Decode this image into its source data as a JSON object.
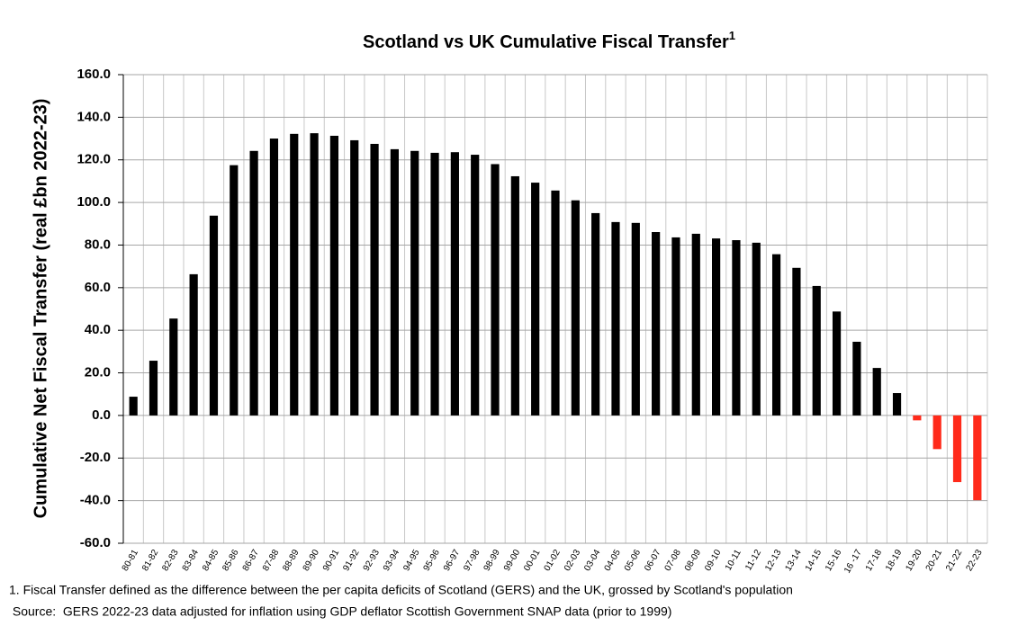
{
  "chart_data": {
    "type": "bar",
    "title": "Scotland vs UK Cumulative Fiscal Transfer",
    "title_superscript": "1",
    "y_label": "Cumulative Net Fiscal Transfer (real £bn 2022-23)",
    "categories": [
      "80-81",
      "81-82",
      "82-83",
      "83-84",
      "84-85",
      "85-86",
      "86-87",
      "87-88",
      "88-89",
      "89-90",
      "90-91",
      "91-92",
      "92-93",
      "93-94",
      "94-95",
      "95-96",
      "96-97",
      "97-98",
      "98-99",
      "99-00",
      "00-01",
      "01-02",
      "02-03",
      "03-04",
      "04-05",
      "05-06",
      "06-07",
      "07-08",
      "08-09",
      "09-10",
      "10-11",
      "11-12",
      "12-13",
      "13-14",
      "14-15",
      "15-16",
      "16 -17",
      "17-18",
      "18-19",
      "19-20",
      "20-21",
      "21-22",
      "22-23"
    ],
    "values": [
      8.8,
      25.7,
      45.5,
      66.3,
      93.8,
      117.5,
      124.2,
      130,
      132.2,
      132.5,
      131.3,
      129.2,
      127.5,
      125,
      124.2,
      123.3,
      123.6,
      122.4,
      118,
      112.3,
      109.3,
      105.6,
      101,
      95,
      90.8,
      90.4,
      86.1,
      83.6,
      85.3,
      83.1,
      82.3,
      81.1,
      75.7,
      69.3,
      60.8,
      48.8,
      34.6,
      22.3,
      10.5,
      -2.3,
      -15.8,
      -31.3,
      -39.8
    ],
    "colors": [
      "#000000",
      "#000000",
      "#000000",
      "#000000",
      "#000000",
      "#000000",
      "#000000",
      "#000000",
      "#000000",
      "#000000",
      "#000000",
      "#000000",
      "#000000",
      "#000000",
      "#000000",
      "#000000",
      "#000000",
      "#000000",
      "#000000",
      "#000000",
      "#000000",
      "#000000",
      "#000000",
      "#000000",
      "#000000",
      "#000000",
      "#000000",
      "#000000",
      "#000000",
      "#000000",
      "#000000",
      "#000000",
      "#000000",
      "#000000",
      "#000000",
      "#000000",
      "#000000",
      "#000000",
      "#000000",
      "#ff2a1a",
      "#ff2a1a",
      "#ff2a1a",
      "#ff2a1a"
    ],
    "ylim": [
      -60,
      160
    ],
    "yticks": [
      {
        "value": -60,
        "label": "-60.0"
      },
      {
        "value": -40,
        "label": "-40.0"
      },
      {
        "value": -20,
        "label": "-20.0"
      },
      {
        "value": 0,
        "label": "0.0"
      },
      {
        "value": 20,
        "label": "20.0"
      },
      {
        "value": 40,
        "label": "40.0"
      },
      {
        "value": 60,
        "label": "60.0"
      },
      {
        "value": 80,
        "label": "80.0"
      },
      {
        "value": 100,
        "label": "100.0"
      },
      {
        "value": 120,
        "label": "120.0"
      },
      {
        "value": 140,
        "label": "140.0"
      },
      {
        "value": 160,
        "label": "160.0"
      }
    ],
    "grid": true,
    "notes": [
      "1.  Fiscal Transfer defined as the difference between the per capita deficits of Scotland (GERS) and the UK,  grossed by Scotland's population",
      " Source:  GERS 2022-23 data adjusted for inflation using GDP deflator Scottish Government SNAP data (prior to 1999)"
    ]
  }
}
